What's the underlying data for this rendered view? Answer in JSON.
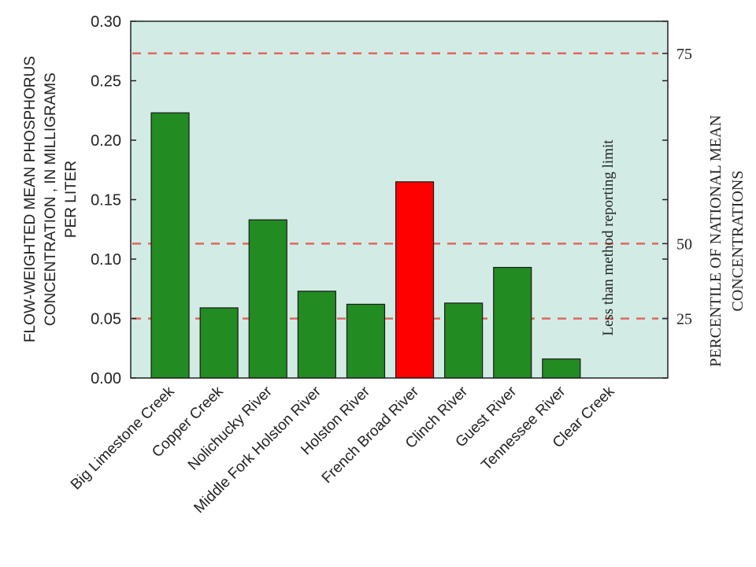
{
  "chart_data": {
    "type": "bar",
    "categories": [
      "Big Limestone Creek",
      "Copper Creek",
      "Nolichucky River",
      "Middle Fork Holston River",
      "Holston River",
      "French Broad River",
      "Clinch River",
      "Guest River",
      "Tennessee River",
      "Clear Creek"
    ],
    "values": [
      0.223,
      0.059,
      0.133,
      0.073,
      0.062,
      0.165,
      0.063,
      0.093,
      0.016,
      null
    ],
    "bar_colors": [
      "#228b22",
      "#228b22",
      "#228b22",
      "#228b22",
      "#228b22",
      "#ff0000",
      "#228b22",
      "#228b22",
      "#228b22",
      null
    ],
    "ylabel": "FLOW-WEIGHTED MEAN PHOSPHORUS CONCENTRATION , IN MILLIGRAMS PER LITER",
    "ylabel_lines": [
      "FLOW-WEIGHTED MEAN PHOSPHORUS",
      "CONCENTRATION , IN MILLIGRAMS",
      "PER LITER"
    ],
    "ylim": [
      0,
      0.3
    ],
    "yticks": [
      "0.00",
      "0.05",
      "0.10",
      "0.15",
      "0.20",
      "0.25",
      "0.30"
    ],
    "y2label": "PERCENTILE OF NATIONAL MEAN CONCENTRATIONS",
    "y2label_lines": [
      "PERCENTILE OF NATIONAL MEAN",
      "CONCENTRATIONS"
    ],
    "percentile_lines": [
      {
        "label": "25",
        "value": 0.05
      },
      {
        "label": "50",
        "value": 0.113
      },
      {
        "label": "75",
        "value": 0.273
      }
    ],
    "annotation": "Less than method reporting limit",
    "annotation_category": "Clear Creek",
    "grid": false,
    "colors": {
      "plot_background": "#d2ece5",
      "reference_line": "#e0675f",
      "axis": "#222222"
    }
  }
}
